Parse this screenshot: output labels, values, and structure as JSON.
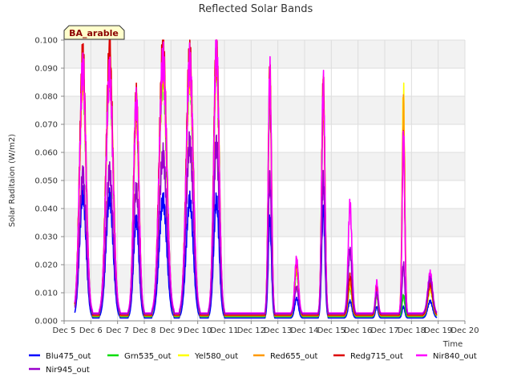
{
  "chart_data": {
    "type": "line",
    "title": "Reflected Solar Bands",
    "xlabel": "Time",
    "ylabel": "Solar Raditaion (W/m2)",
    "station_label": "BA_arable",
    "x_ticks": [
      "Dec 5",
      "Dec 6",
      "Dec 7",
      "Dec 8",
      "Dec 9",
      "Dec 10",
      "Dec 11",
      "Dec 12",
      "Dec 13",
      "Dec 14",
      "Dec 15",
      "Dec 16",
      "Dec 17",
      "Dec 18",
      "Dec 19",
      "Dec 20"
    ],
    "y_ticks": [
      "0.000",
      "0.010",
      "0.020",
      "0.030",
      "0.040",
      "0.050",
      "0.060",
      "0.070",
      "0.080",
      "0.090",
      "0.100"
    ],
    "xlim_days": [
      5,
      20
    ],
    "ylim": [
      0,
      0.1
    ],
    "grid": true,
    "legend_position": "bottom",
    "series_peak_day": [
      5.7,
      6.7,
      7.7,
      8.7,
      9.7,
      10.7,
      12.7,
      13.7,
      14.7,
      15.7,
      16.7,
      17.7,
      18.7
    ],
    "series_peak_width": [
      0.12,
      0.13,
      0.1,
      0.14,
      0.13,
      0.1,
      0.06,
      0.07,
      0.06,
      0.07,
      0.05,
      0.05,
      0.09
    ],
    "series": [
      {
        "name": "Blu475_out",
        "color": "#0000ff",
        "base": 0.001,
        "peaks": [
          0.045,
          0.044,
          0.036,
          0.043,
          0.043,
          0.043,
          0.036,
          0.008,
          0.04,
          0.007,
          0.005,
          0.005,
          0.007
        ]
      },
      {
        "name": "Grn535_out",
        "color": "#00dd00",
        "base": 0.0015,
        "peaks": [
          0.088,
          0.088,
          0.075,
          0.088,
          0.088,
          0.094,
          0.082,
          0.018,
          0.08,
          0.012,
          0.009,
          0.009,
          0.011
        ]
      },
      {
        "name": "Yel580_out",
        "color": "#ffff00",
        "base": 0.0018,
        "peaks": [
          0.087,
          0.089,
          0.075,
          0.09,
          0.088,
          0.094,
          0.085,
          0.019,
          0.081,
          0.013,
          0.01,
          0.081,
          0.011
        ]
      },
      {
        "name": "Red655_out",
        "color": "#ff9900",
        "base": 0.0018,
        "peaks": [
          0.088,
          0.091,
          0.076,
          0.091,
          0.09,
          0.095,
          0.086,
          0.02,
          0.082,
          0.014,
          0.01,
          0.076,
          0.012
        ]
      },
      {
        "name": "Redg715_out",
        "color": "#dd0000",
        "base": 0.002,
        "peaks": [
          0.094,
          0.095,
          0.079,
          0.097,
          0.095,
          0.099,
          0.088,
          0.021,
          0.085,
          0.016,
          0.012,
          0.065,
          0.013
        ]
      },
      {
        "name": "Nir840_out",
        "color": "#ff00ff",
        "base": 0.0028,
        "peaks": [
          0.09,
          0.088,
          0.078,
          0.093,
          0.092,
          0.097,
          0.088,
          0.022,
          0.084,
          0.041,
          0.014,
          0.066,
          0.017
        ]
      },
      {
        "name": "Nir945_out",
        "color": "#9900cc",
        "base": 0.0025,
        "peaks": [
          0.052,
          0.053,
          0.047,
          0.059,
          0.063,
          0.063,
          0.05,
          0.012,
          0.05,
          0.025,
          0.01,
          0.02,
          0.015
        ]
      }
    ]
  }
}
